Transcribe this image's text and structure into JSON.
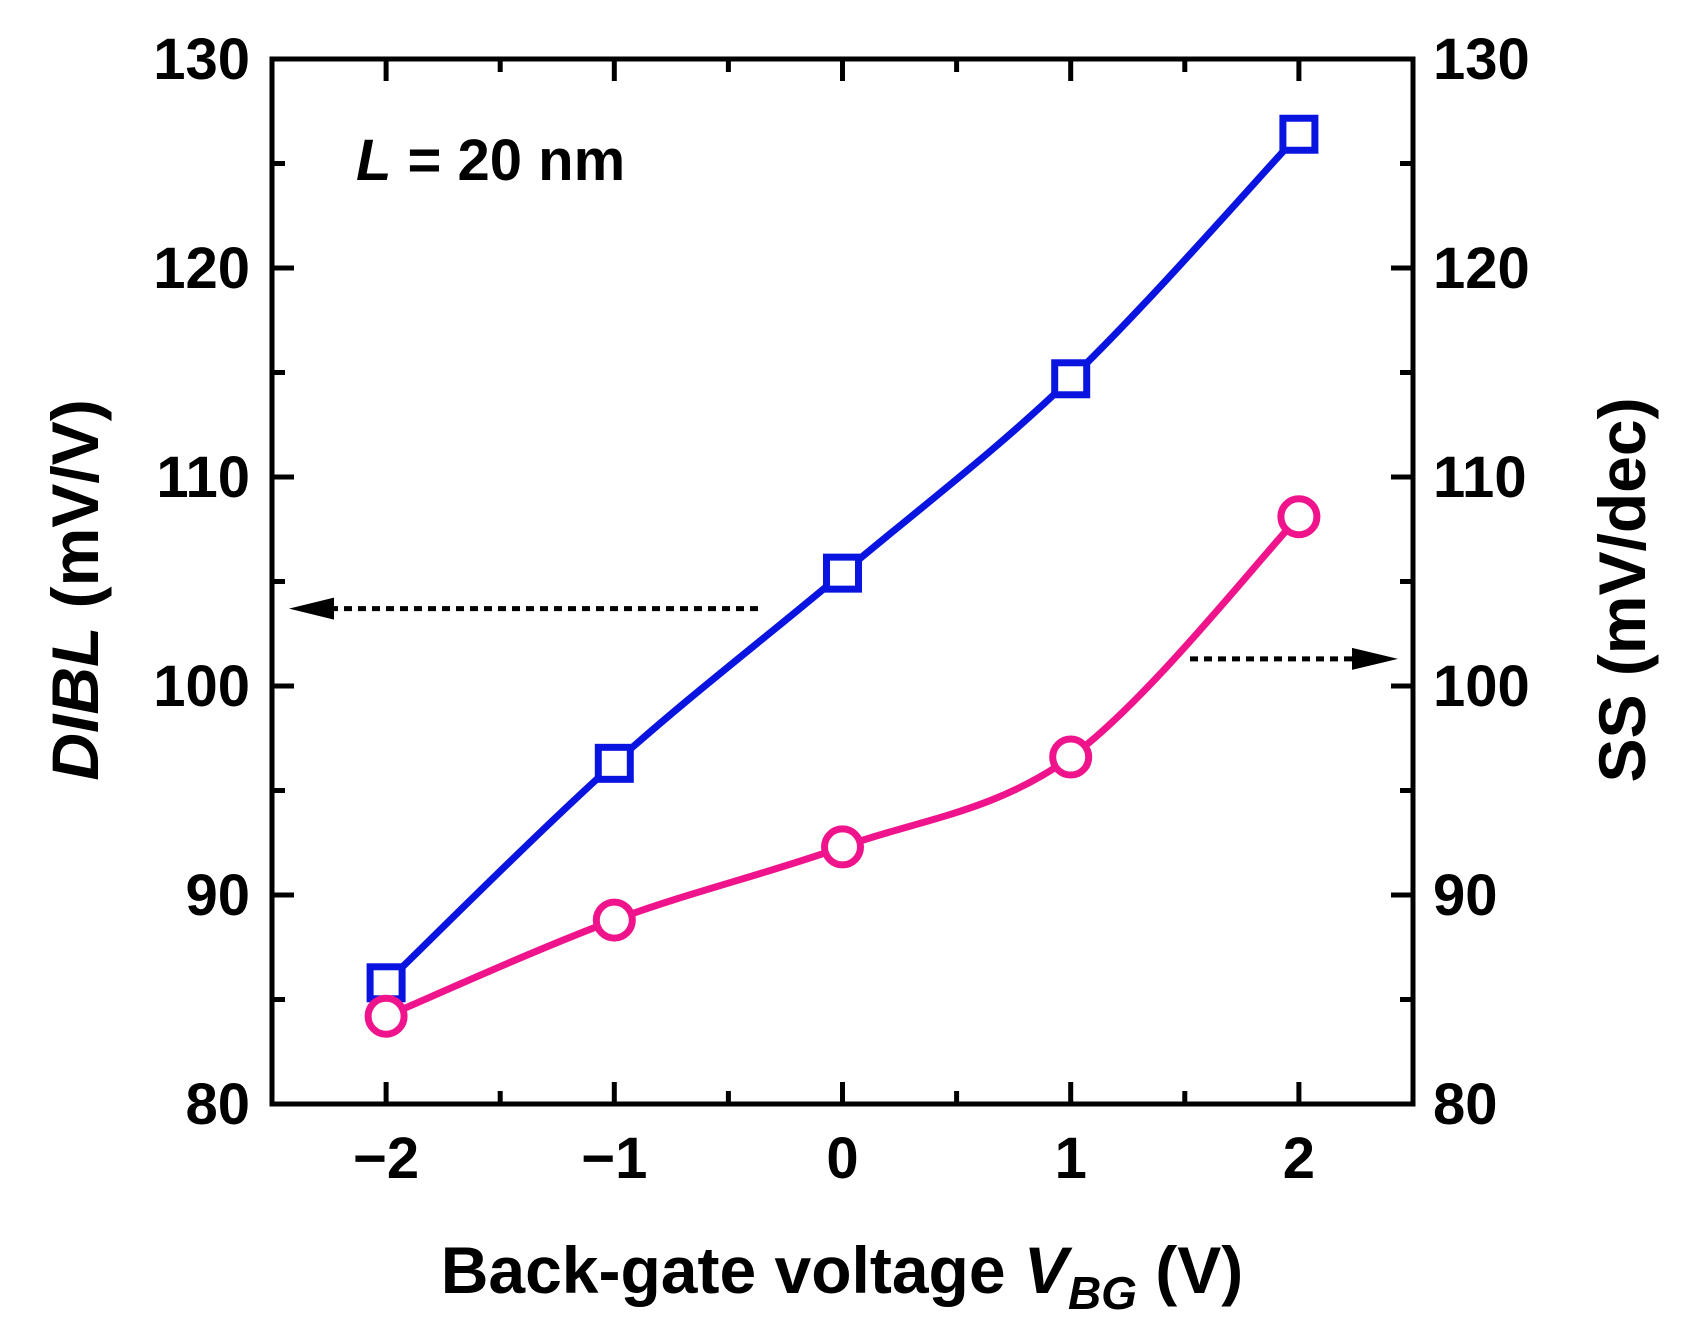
{
  "chart_data": {
    "type": "line",
    "x": [
      -2,
      -1,
      0,
      1,
      2
    ],
    "xticks": [
      "−2",
      "−1",
      "0",
      "1",
      "2"
    ],
    "xlim": [
      -2.5,
      2.5
    ],
    "xlabel": {
      "main": "Back-gate voltage ",
      "var": "V",
      "sub": "BG",
      "unit": " (V)"
    },
    "ylabel_left": {
      "italic": "DIBL",
      "rest": " (mV/V)"
    },
    "ylabel_right": "SS (mV/dec)",
    "ylim": [
      80,
      130
    ],
    "yticks": [
      "80",
      "90",
      "100",
      "110",
      "120",
      "130"
    ],
    "annotation": {
      "var": "L",
      "rest": " = 20 nm"
    },
    "series": [
      {
        "axis": "left",
        "marker": "square",
        "color": "#0a14e0",
        "values": [
          85.8,
          96.3,
          105.4,
          114.7,
          126.4
        ]
      },
      {
        "axis": "right",
        "marker": "circle",
        "color": "#f0148c",
        "values": [
          84.2,
          88.8,
          92.3,
          96.6,
          108.1
        ]
      }
    ]
  }
}
